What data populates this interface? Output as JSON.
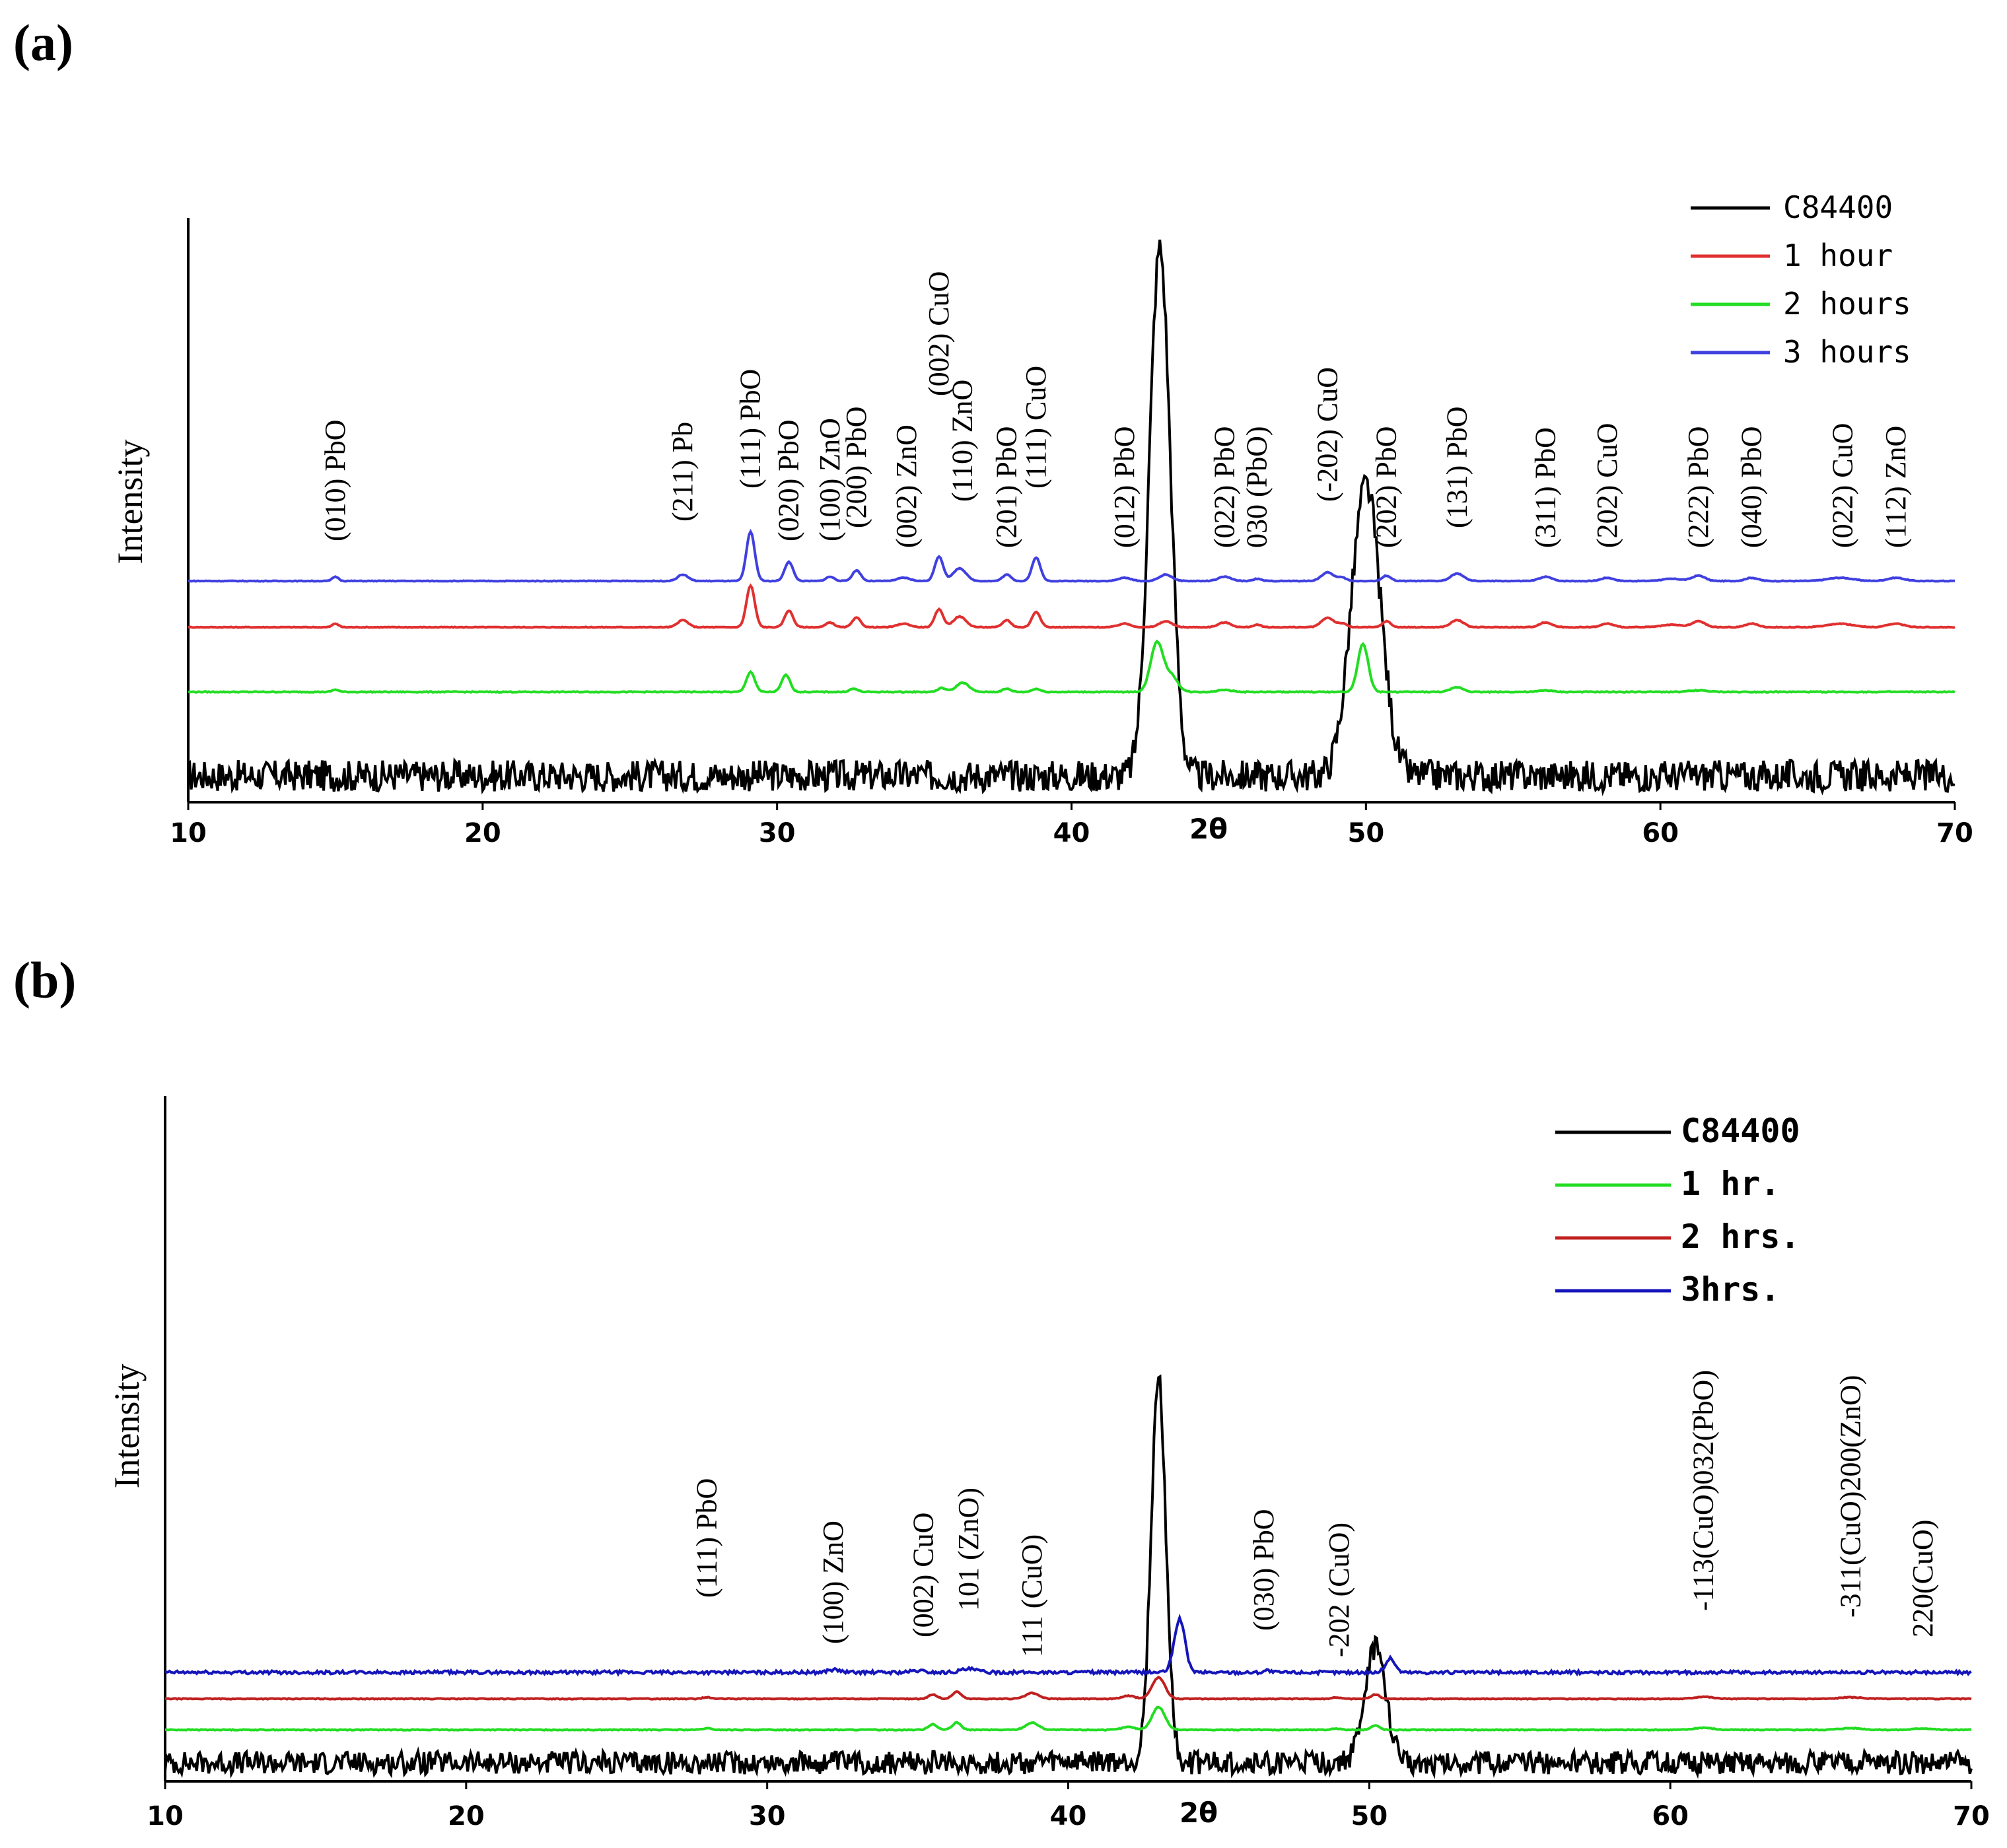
{
  "chart_data": [
    {
      "panel": "(a)",
      "type": "line",
      "xlabel": "2θ",
      "ylabel": "Intensity",
      "xlim": [
        10,
        70
      ],
      "x_ticks": [
        "10",
        "20",
        "30",
        "40",
        "50",
        "60",
        "70"
      ],
      "legend_position": "top-right",
      "series": [
        {
          "name": "C84400",
          "color": "#000000"
        },
        {
          "name": "1 hour",
          "color": "#e03030"
        },
        {
          "name": "2 hours",
          "color": "#22dd22"
        },
        {
          "name": "3 hours",
          "color": "#4040e0"
        }
      ],
      "annotations": [
        {
          "text": "(010) PbO",
          "x": 15
        },
        {
          "text": "(211) Pb",
          "x": 26.8
        },
        {
          "text": "(111) PbO",
          "x": 29.1
        },
        {
          "text": "(020) PbO",
          "x": 30.4
        },
        {
          "text": "(100) ZnO",
          "x": 31.8
        },
        {
          "text": "(200) PbO",
          "x": 32.7
        },
        {
          "text": "(002) ZnO",
          "x": 34.4
        },
        {
          "text": "(002) CuO",
          "x": 35.5
        },
        {
          "text": "(110) ZnO",
          "x": 36.3
        },
        {
          "text": "(201) PbO",
          "x": 37.8
        },
        {
          "text": "(111) CuO",
          "x": 38.8
        },
        {
          "text": "(012) PbO",
          "x": 41.8
        },
        {
          "text": "(022) PbO",
          "x": 45.2
        },
        {
          "text": "030 (PbO)",
          "x": 46.3
        },
        {
          "text": "(-202) CuO",
          "x": 48.7
        },
        {
          "text": "(202) PbO",
          "x": 50.7
        },
        {
          "text": "(131) PbO",
          "x": 53.1
        },
        {
          "text": "(311) PbO",
          "x": 56.1
        },
        {
          "text": "(202) CuO",
          "x": 58.2
        },
        {
          "text": "(222) PbO",
          "x": 61.3
        },
        {
          "text": "(040) PbO",
          "x": 63.1
        },
        {
          "text": "(022) CuO",
          "x": 66.2
        },
        {
          "text": "(112) ZnO",
          "x": 68
        }
      ]
    },
    {
      "panel": "(b)",
      "type": "line",
      "xlabel": "2θ",
      "ylabel": "Intensity",
      "xlim": [
        10,
        70
      ],
      "x_ticks": [
        "10",
        "20",
        "30",
        "40",
        "50",
        "60",
        "70"
      ],
      "legend_position": "top-right",
      "series": [
        {
          "name": "C84400",
          "color": "#000000"
        },
        {
          "name": "1 hr.",
          "color": "#22dd22"
        },
        {
          "name": "2 hrs.",
          "color": "#c02020"
        },
        {
          "name": "3hrs.",
          "color": "#1515bb"
        }
      ],
      "annotations": [
        {
          "text": "(111) PbO",
          "x": 28
        },
        {
          "text": "(100) ZnO",
          "x": 32.2
        },
        {
          "text": "(002) CuO",
          "x": 35.2
        },
        {
          "text": "101 (ZnO)",
          "x": 36.7
        },
        {
          "text": "111 (CuO)",
          "x": 38.8
        },
        {
          "text": "(030) PbO",
          "x": 46.5
        },
        {
          "text": "-202 (CuO)",
          "x": 49
        },
        {
          "text": "-113(CuO)032(PbO)",
          "x": 61.1
        },
        {
          "text": "-311(CuO)200(ZnO)",
          "x": 66
        },
        {
          "text": "220(CuO)",
          "x": 68.4
        }
      ]
    }
  ]
}
